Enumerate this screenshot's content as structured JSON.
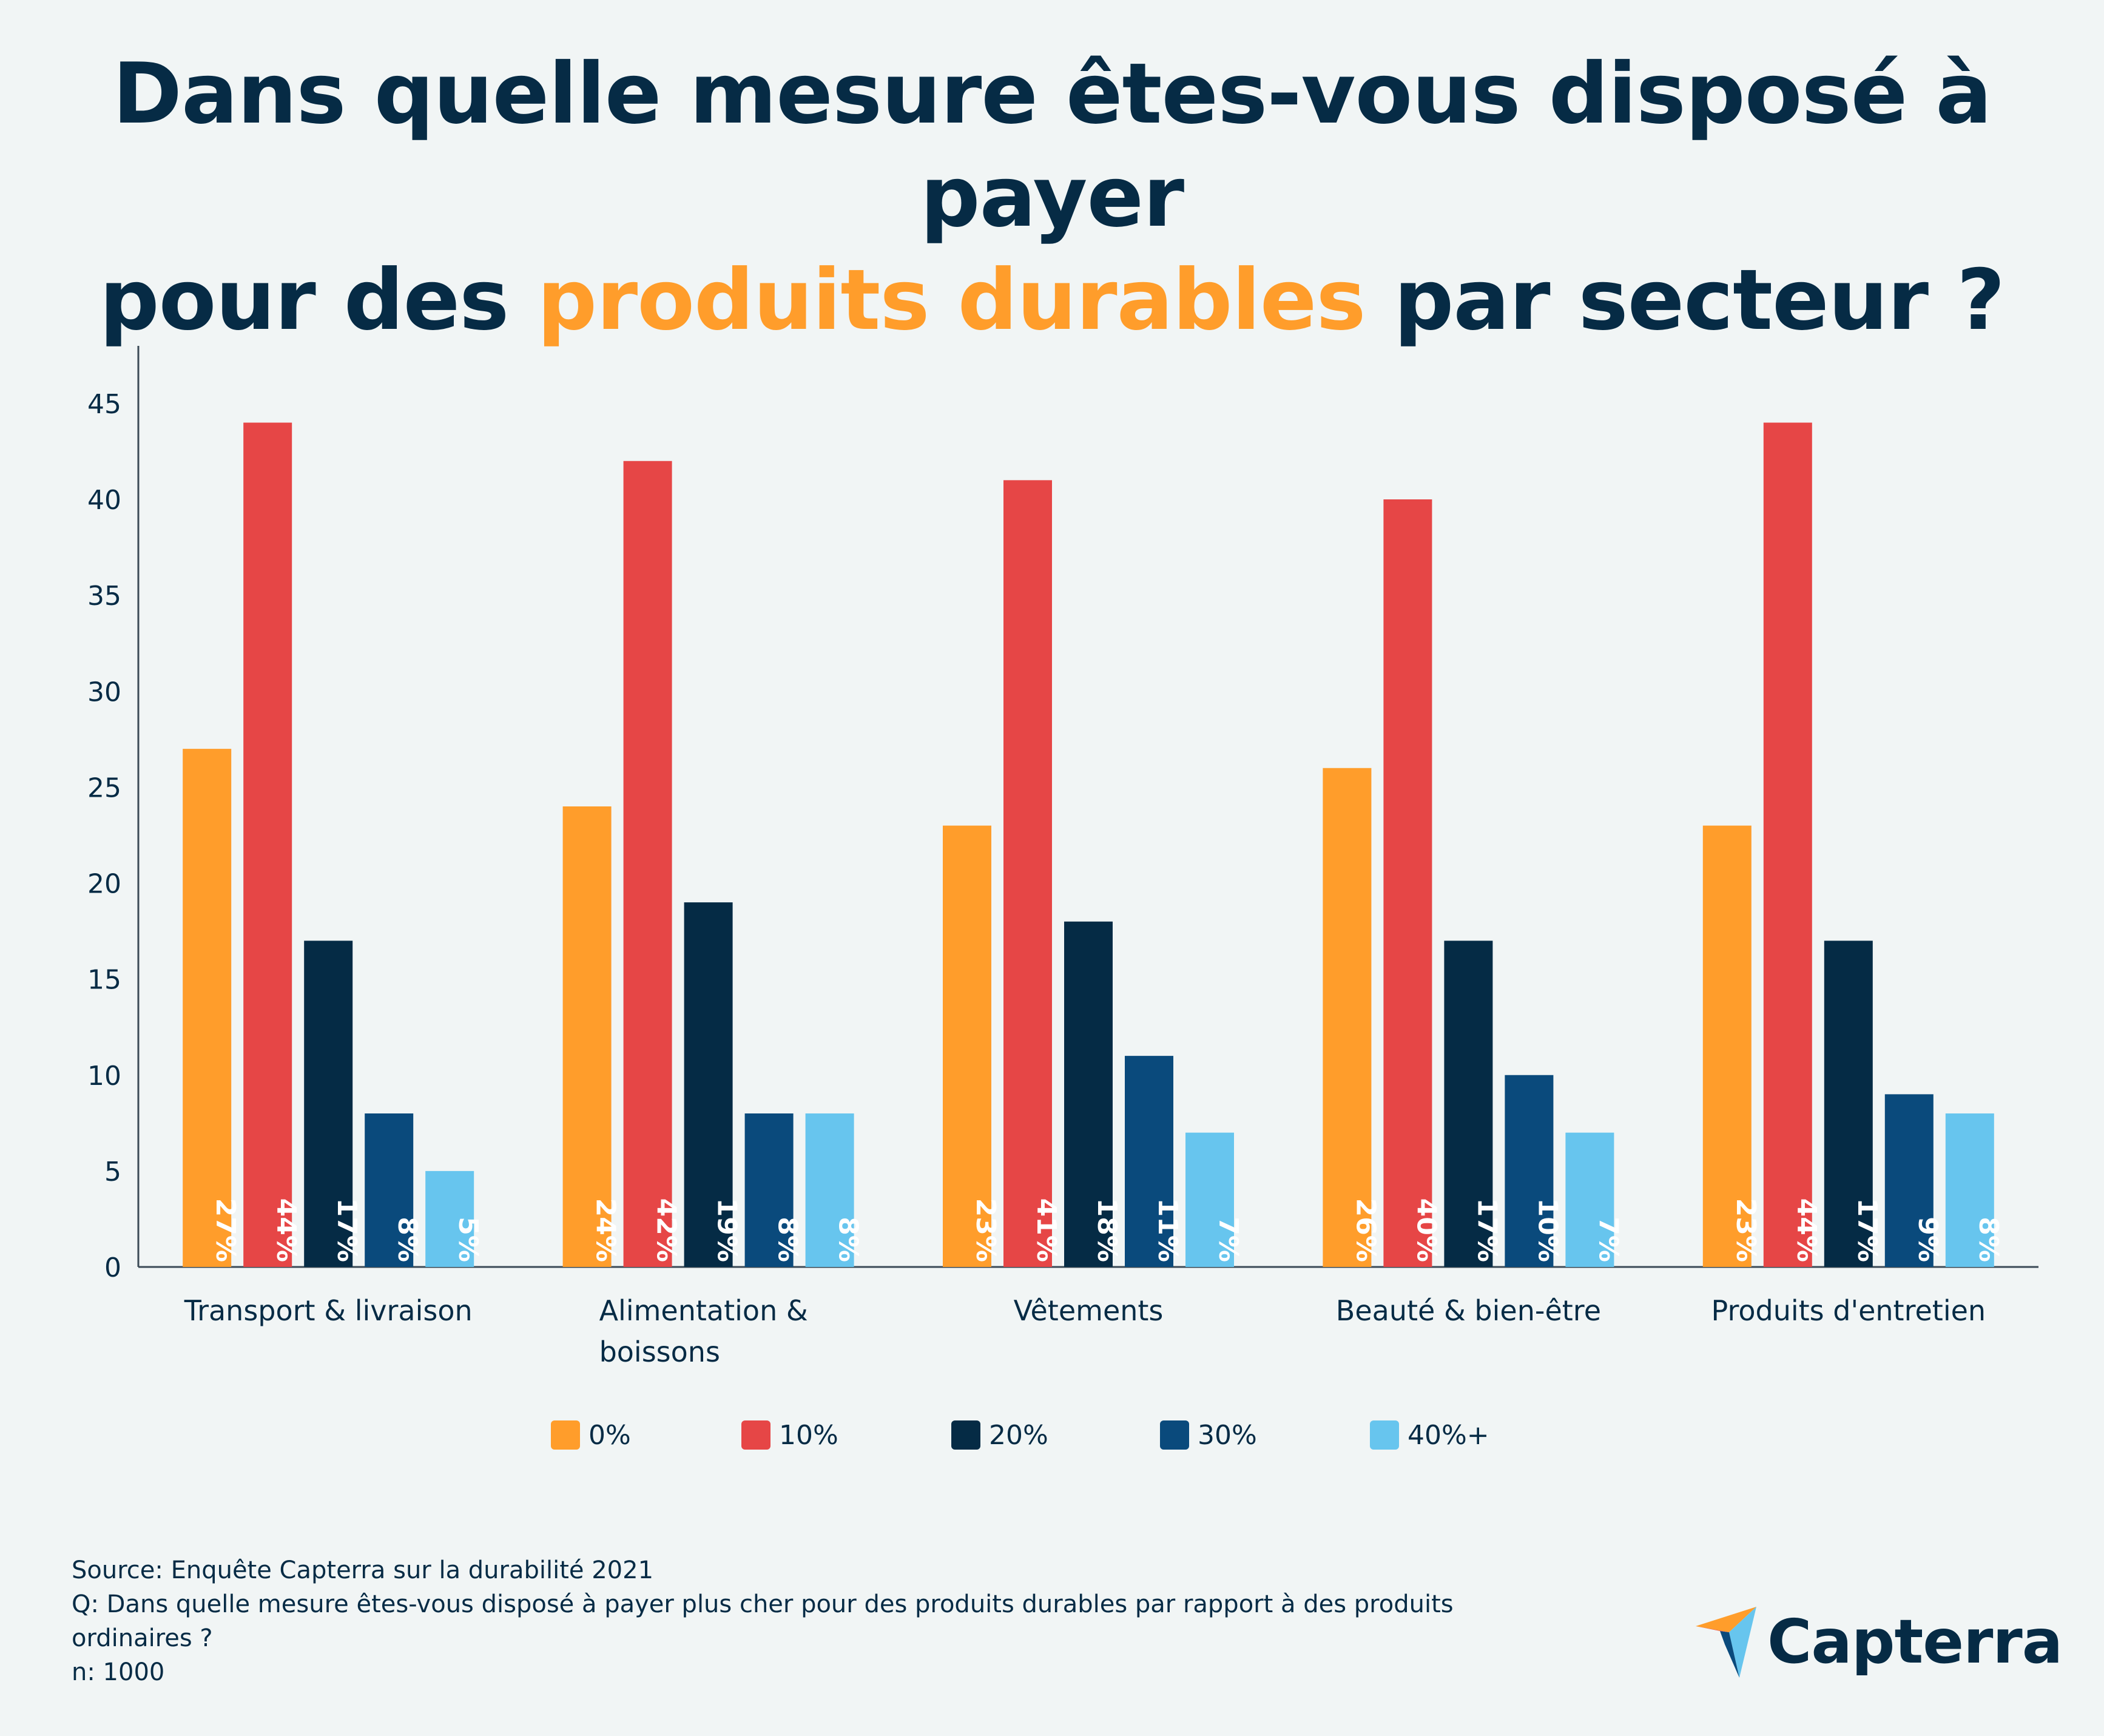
{
  "title": {
    "line1": "Dans quelle mesure êtes-vous disposé à payer",
    "line2_pre": "pour des ",
    "line2_highlight": "produits durables",
    "line2_post": " par secteur ?"
  },
  "colors": {
    "title": "#062b45",
    "highlight": "#ff9d2b",
    "axis": "#3b4a56"
  },
  "chart_data": {
    "type": "bar",
    "categories": [
      [
        "Transport & livraison"
      ],
      [
        "Alimentation &",
        "boissons"
      ],
      [
        "Vêtements"
      ],
      [
        "Beauté & bien-être"
      ],
      [
        "Produits d'entretien"
      ]
    ],
    "series": [
      {
        "name": "0%",
        "color": "#ff9d2b",
        "values": [
          27,
          24,
          23,
          26,
          23
        ]
      },
      {
        "name": "10%",
        "color": "#e64646",
        "values": [
          44,
          42,
          41,
          40,
          44
        ]
      },
      {
        "name": "20%",
        "color": "#052b45",
        "values": [
          17,
          19,
          18,
          17,
          17
        ]
      },
      {
        "name": "30%",
        "color": "#0a4a7c",
        "values": [
          8,
          8,
          11,
          10,
          9
        ]
      },
      {
        "name": "40%+",
        "color": "#67c5ee",
        "values": [
          5,
          8,
          7,
          7,
          8
        ]
      }
    ],
    "data_labels": [
      [
        "27%",
        "24%",
        "23%",
        "26%",
        "23%"
      ],
      [
        "44%",
        "42%",
        "41%",
        "40%",
        "44%"
      ],
      [
        "17%",
        "19%",
        "18%",
        "17%",
        "17%"
      ],
      [
        "8%",
        "8%",
        "11%",
        "10%",
        "9%"
      ],
      [
        "5%",
        "8%",
        "7%",
        "7%",
        "8%"
      ]
    ],
    "yticks": [
      0,
      5,
      10,
      15,
      20,
      25,
      30,
      35,
      40,
      45
    ],
    "ylim": [
      0,
      48
    ],
    "xlabel": "",
    "ylabel": "",
    "grid": false,
    "legend_position": "bottom-center"
  },
  "footer": {
    "source": "Source: Enquête Capterra sur la durabilité 2021",
    "question": "Q: Dans quelle mesure êtes-vous disposé à payer plus cher pour des produits durables par rapport à des produits\nordinaires ?",
    "n": "n: 1000"
  },
  "logo": {
    "text": "Capterra",
    "icon": "capterra-arrow-icon"
  }
}
